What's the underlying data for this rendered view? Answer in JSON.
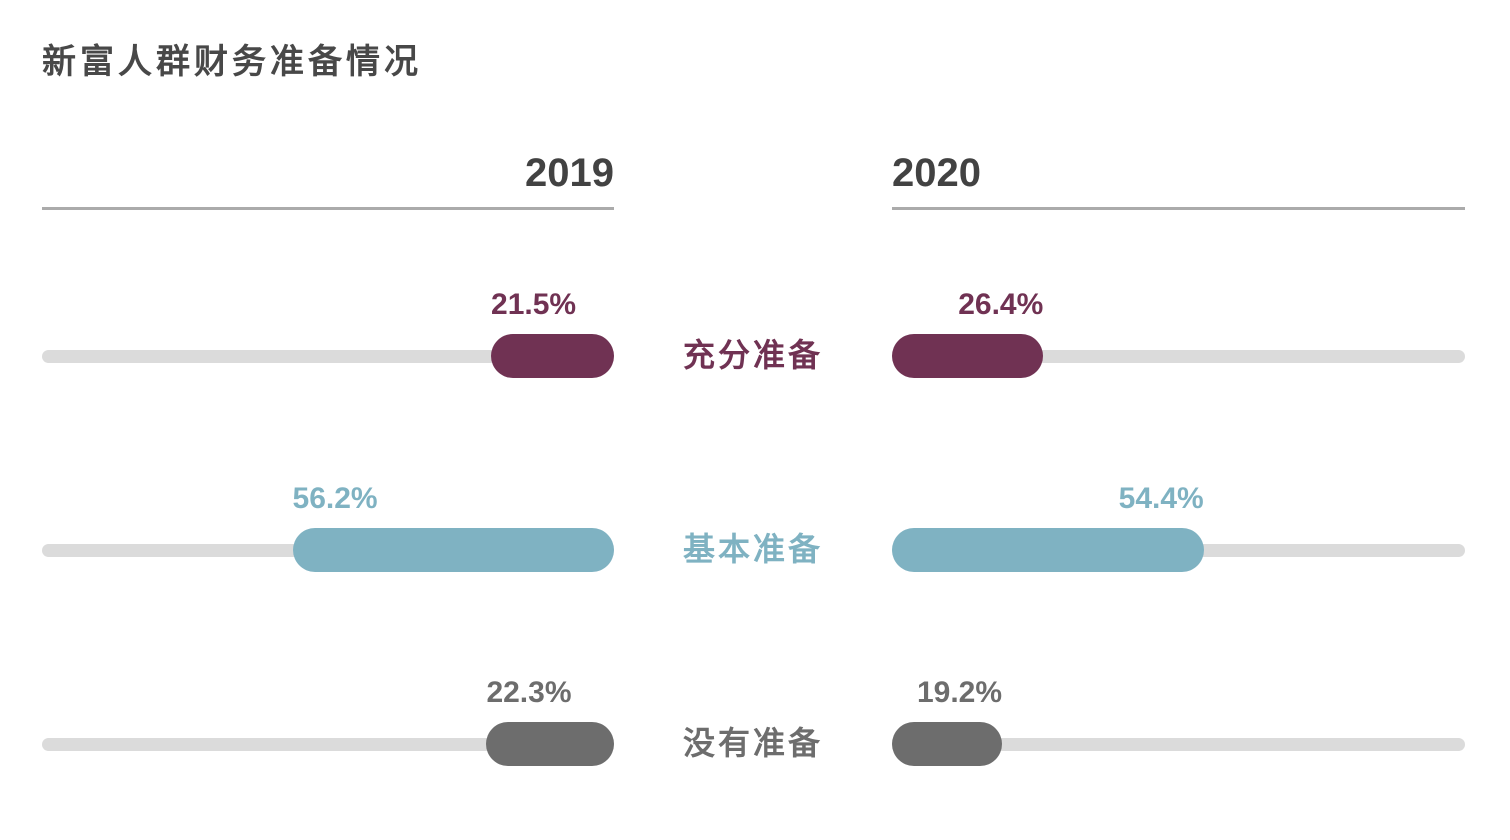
{
  "title": {
    "text": "新富人群财务准备情况",
    "color": "#484848"
  },
  "columns": [
    {
      "label": "2019"
    },
    {
      "label": "2020"
    }
  ],
  "chart_data": {
    "type": "bar",
    "orientation": "horizontal",
    "title": "新富人群财务准备情况",
    "categories": [
      "充分准备",
      "基本准备",
      "没有准备"
    ],
    "series": [
      {
        "name": "2019",
        "anchor": "right",
        "values": [
          21.5,
          56.2,
          22.3
        ],
        "labels": [
          "21.5%",
          "56.2%",
          "22.3%"
        ]
      },
      {
        "name": "2020",
        "anchor": "left",
        "values": [
          26.4,
          54.4,
          19.2
        ],
        "labels": [
          "26.4%",
          "54.4%",
          "19.2%"
        ]
      }
    ],
    "xlim": [
      0,
      100
    ],
    "grid": false,
    "legend": "none",
    "category_colors": [
      "#703253",
      "#7FB2C2",
      "#6D6D6D"
    ],
    "track_color": "#DBDBDB",
    "header_rule_color": "#ABABAB",
    "year_color": "#424242"
  }
}
